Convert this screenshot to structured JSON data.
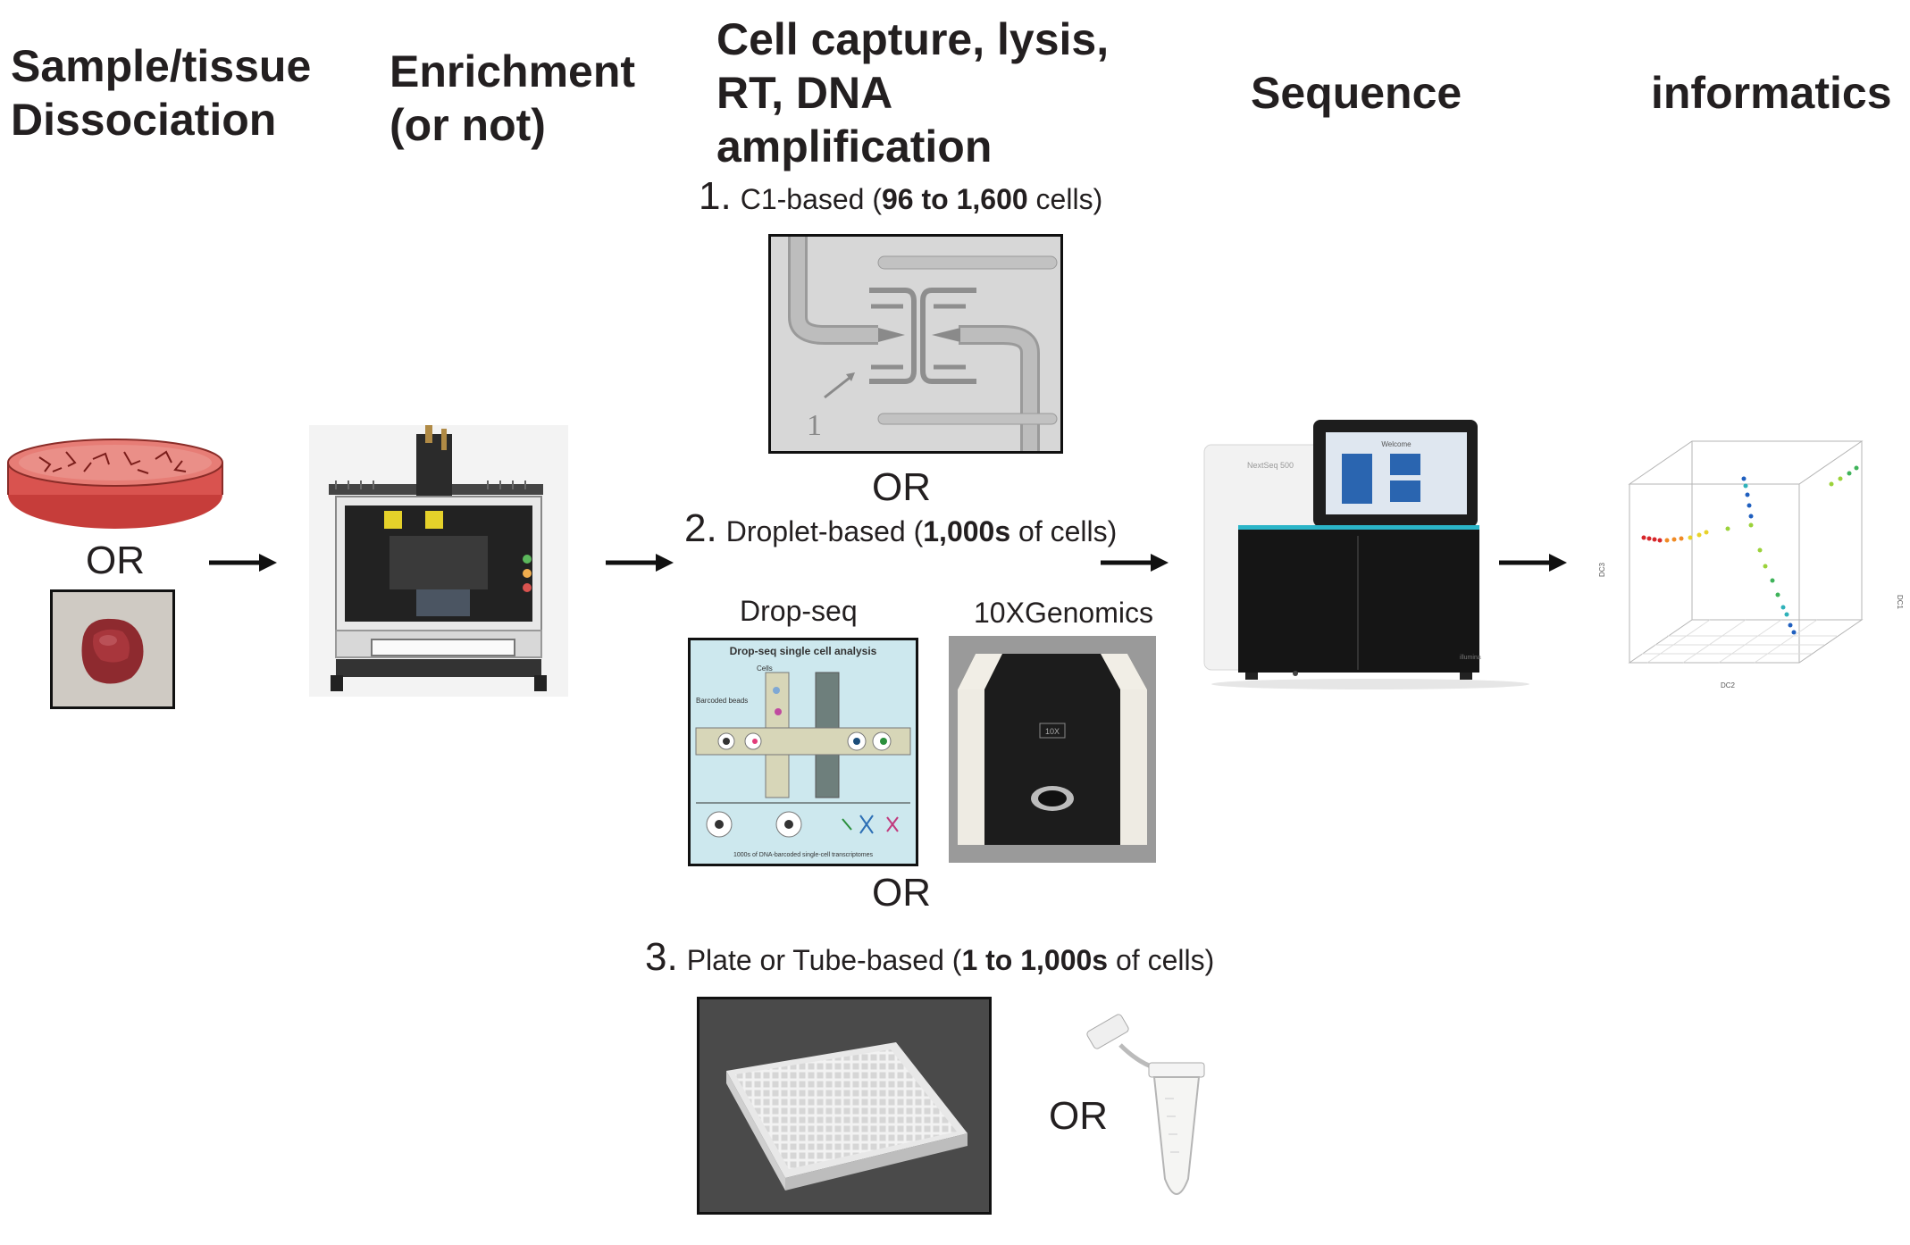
{
  "headers": {
    "step1": [
      "Sample/tissue",
      "Dissociation"
    ],
    "step2": [
      "Enrichment",
      "(or not)"
    ],
    "step3": [
      "Cell capture, lysis,",
      "RT, DNA",
      "amplification"
    ],
    "step4": "Sequence",
    "step5": "informatics"
  },
  "or_label": "OR",
  "methods": [
    {
      "num": "1.",
      "pre": "C1-based (",
      "bold": "96 to 1,600",
      "post": " cells)"
    },
    {
      "num": "2.",
      "pre": "Droplet-based (",
      "bold": "1,000s",
      "post": " of cells)"
    },
    {
      "num": "3.",
      "pre": "Plate or Tube-based (",
      "bold": "1 to 1,000s",
      "post": " of cells)"
    }
  ],
  "droplet_platforms": {
    "dropseq": "Drop-seq",
    "tenx": "10XGenomics"
  },
  "dropseq_figure": {
    "title": "Drop-seq single cell analysis",
    "cells_label": "Cells",
    "beads_label": "Barcoded beads",
    "footer": "1000s of DNA-barcoded single-cell transcriptomes"
  },
  "tenx_logo": "10X",
  "sequencer": {
    "model": "NextSeq 500",
    "screen_title": "Welcome",
    "brand": "illumina"
  },
  "plot": {
    "axis_x": "DC2",
    "axis_y": "DC3",
    "axis_z": "DC1"
  },
  "c1_chip_marker": "1",
  "colors": {
    "text": "#231f20",
    "arrow": "#111111",
    "dish_red": "#d9534f",
    "sequencer_accent": "#2bb5c8"
  }
}
